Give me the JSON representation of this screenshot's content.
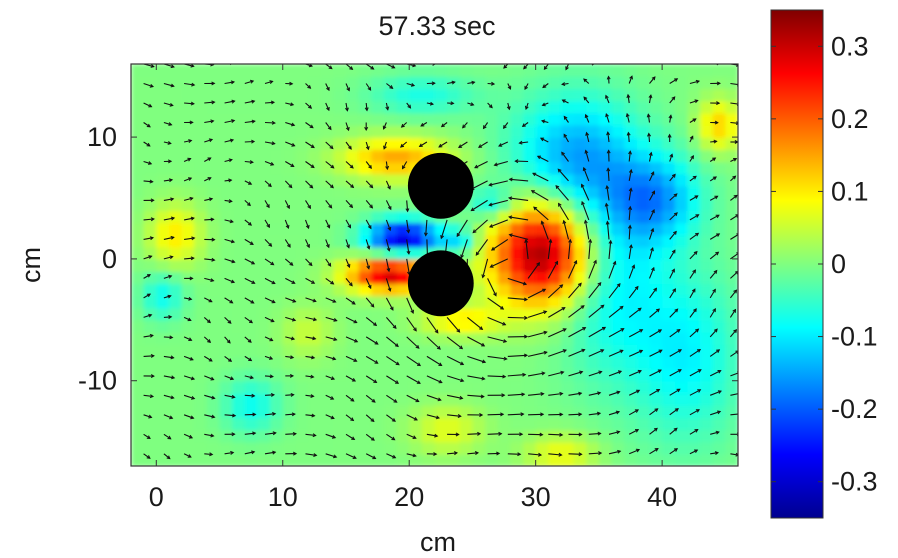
{
  "chart_data": {
    "type": "heatmap",
    "title": "57.33 sec",
    "xlabel": "cm",
    "ylabel": "cm",
    "xlim": [
      -2,
      46
    ],
    "ylim": [
      -17,
      16
    ],
    "x_ticks": [
      0,
      10,
      20,
      30,
      40
    ],
    "x_tick_labels": [
      "0",
      "10",
      "20",
      "30",
      "40"
    ],
    "y_ticks": [
      -10,
      0,
      10
    ],
    "y_tick_labels": [
      "-10",
      "0",
      "10"
    ],
    "colorbar": {
      "range": [
        -0.35,
        0.35
      ],
      "ticks": [
        0.3,
        0.2,
        0.1,
        0,
        -0.1,
        -0.2,
        -0.3
      ],
      "tick_labels": [
        "0.3",
        "0.2",
        "0.1",
        "0",
        "-0.1",
        "-0.2",
        "-0.3"
      ],
      "colormap": "jet"
    },
    "cylinders": [
      {
        "x": 22.5,
        "y": 6.0,
        "r": 2.6
      },
      {
        "x": 22.5,
        "y": -2.0,
        "r": 2.6
      }
    ],
    "field_blobs": [
      {
        "x": 30.5,
        "y": 0.5,
        "sx": 2.8,
        "sy": 3.0,
        "amp": 0.34
      },
      {
        "x": 19.5,
        "y": 1.8,
        "sx": 2.0,
        "sy": 1.0,
        "amp": -0.3
      },
      {
        "x": 18.5,
        "y": -1.2,
        "sx": 2.4,
        "sy": 1.0,
        "amp": 0.3
      },
      {
        "x": 19.0,
        "y": 8.3,
        "sx": 3.0,
        "sy": 1.2,
        "amp": 0.15
      },
      {
        "x": 24.0,
        "y": -5.0,
        "sx": 2.2,
        "sy": 0.9,
        "amp": 0.1
      },
      {
        "x": 26.5,
        "y": 4.5,
        "sx": 1.3,
        "sy": 1.0,
        "amp": -0.1
      },
      {
        "x": 24.0,
        "y": 1.5,
        "sx": 1.0,
        "sy": 0.8,
        "amp": -0.1
      },
      {
        "x": 33.0,
        "y": 8.5,
        "sx": 3.5,
        "sy": 3.5,
        "amp": -0.14
      },
      {
        "x": 39.5,
        "y": 5.0,
        "sx": 2.5,
        "sy": 2.5,
        "amp": -0.14
      },
      {
        "x": 36.0,
        "y": -1.0,
        "sx": 3.0,
        "sy": 6.0,
        "amp": -0.1
      },
      {
        "x": 42.0,
        "y": -8.0,
        "sx": 3.0,
        "sy": 5.0,
        "amp": -0.09
      },
      {
        "x": 44.5,
        "y": 11.0,
        "sx": 1.2,
        "sy": 1.5,
        "amp": 0.12
      },
      {
        "x": 1.5,
        "y": 2.0,
        "sx": 1.5,
        "sy": 1.8,
        "amp": 0.1
      },
      {
        "x": 0.5,
        "y": -3.0,
        "sx": 1.2,
        "sy": 1.4,
        "amp": -0.08
      },
      {
        "x": 7.5,
        "y": -12.0,
        "sx": 1.6,
        "sy": 1.6,
        "amp": -0.08
      },
      {
        "x": 23.0,
        "y": -14.0,
        "sx": 2.0,
        "sy": 1.4,
        "amp": 0.07
      },
      {
        "x": 32.0,
        "y": -16.0,
        "sx": 2.0,
        "sy": 1.2,
        "amp": 0.08
      },
      {
        "x": 21.0,
        "y": 13.5,
        "sx": 3.0,
        "sy": 1.2,
        "amp": -0.07
      },
      {
        "x": 12.0,
        "y": -6.0,
        "sx": 1.5,
        "sy": 1.5,
        "amp": 0.05
      }
    ],
    "vortices": [
      {
        "x": 29.5,
        "y": 1.5,
        "strength": 1.2,
        "core": 4.5
      },
      {
        "x": 28.0,
        "y": -1.0,
        "strength": 1.6,
        "core": 9.0
      }
    ],
    "freestream": [
      1.0,
      0.0
    ]
  }
}
